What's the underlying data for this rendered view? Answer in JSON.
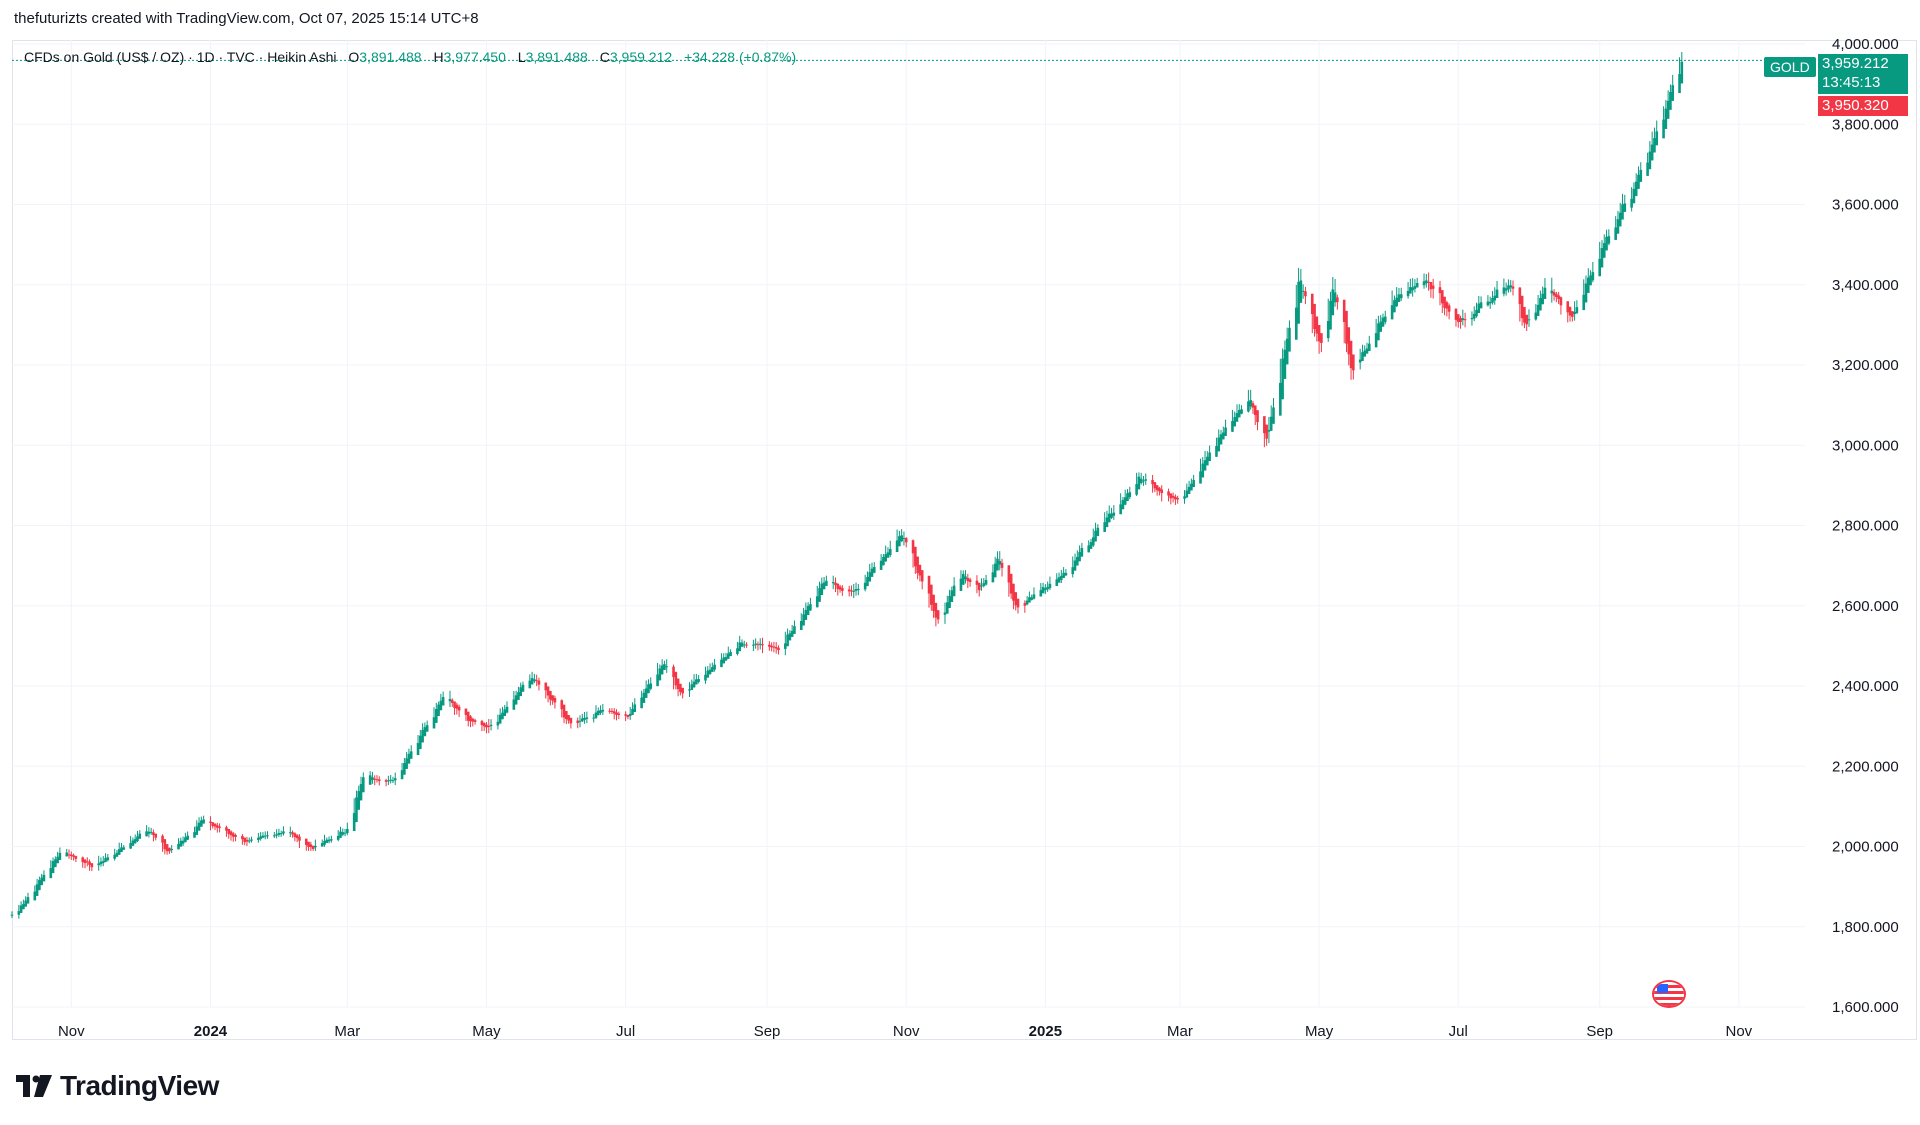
{
  "caption": "thefuturizts created with TradingView.com, Oct 07, 2025 15:14 UTC+8",
  "legend": {
    "symbol": "CFDs on Gold (US$ / OZ) · 1D · TVC · Heikin Ashi",
    "o_label": "O",
    "o_value": "3,891.488",
    "h_label": "H",
    "h_value": "3,977.450",
    "l_label": "L",
    "l_value": "3,891.488",
    "c_label": "C",
    "c_value": "3,959.212",
    "change": "+34.228 (+0.87%)"
  },
  "price_tags": {
    "ticker": "GOLD",
    "last_price": "3,959.212",
    "countdown": "13:45:13",
    "other_price": "3,950.320"
  },
  "logo_text": "TradingView",
  "colors": {
    "up": "#089981",
    "down": "#f23645",
    "grid": "#f0f3fa",
    "axis_text": "#131722"
  },
  "icons": {
    "flag": "us-flag-icon",
    "logo": "tradingview-logo-icon"
  },
  "chart_data": {
    "type": "candlestick",
    "style": "Heikin Ashi",
    "interval": "1D",
    "title": "CFDs on Gold (US$ / OZ)",
    "ylim": [
      1600,
      4000
    ],
    "y_ticks": [
      "1,600.000",
      "1,800.000",
      "2,000.000",
      "2,200.000",
      "2,400.000",
      "2,600.000",
      "2,800.000",
      "3,000.000",
      "3,200.000",
      "3,400.000",
      "3,600.000",
      "3,800.000",
      "4,000.000"
    ],
    "x_ticks": [
      {
        "label": "Nov",
        "date": "2023-11-01",
        "bold": false
      },
      {
        "label": "2024",
        "date": "2024-01-01",
        "bold": true
      },
      {
        "label": "Mar",
        "date": "2024-03-01",
        "bold": false
      },
      {
        "label": "May",
        "date": "2024-05-01",
        "bold": false
      },
      {
        "label": "Jul",
        "date": "2024-07-01",
        "bold": false
      },
      {
        "label": "Sep",
        "date": "2024-09-01",
        "bold": false
      },
      {
        "label": "Nov",
        "date": "2024-11-01",
        "bold": false
      },
      {
        "label": "2025",
        "date": "2025-01-01",
        "bold": true
      },
      {
        "label": "Mar",
        "date": "2025-03-01",
        "bold": false
      },
      {
        "label": "May",
        "date": "2025-05-01",
        "bold": false
      },
      {
        "label": "Jul",
        "date": "2025-07-01",
        "bold": false
      },
      {
        "label": "Sep",
        "date": "2025-09-01",
        "bold": false
      },
      {
        "label": "Nov",
        "date": "2025-11-01",
        "bold": false
      }
    ],
    "x_range": [
      "2023-10-06",
      "2025-11-30"
    ],
    "last_close": 3959.212,
    "secondary_price": 3950.32,
    "anchors": [
      [
        "2023-10-06",
        1830
      ],
      [
        "2023-10-12",
        1870
      ],
      [
        "2023-10-27",
        1990
      ],
      [
        "2023-11-10",
        1950
      ],
      [
        "2023-11-20",
        1985
      ],
      [
        "2023-12-04",
        2045
      ],
      [
        "2023-12-13",
        1985
      ],
      [
        "2023-12-28",
        2065
      ],
      [
        "2024-01-17",
        2010
      ],
      [
        "2024-02-02",
        2040
      ],
      [
        "2024-02-14",
        1995
      ],
      [
        "2024-02-29",
        2040
      ],
      [
        "2024-03-08",
        2180
      ],
      [
        "2024-03-20",
        2160
      ],
      [
        "2024-04-12",
        2380
      ],
      [
        "2024-04-23",
        2310
      ],
      [
        "2024-05-02",
        2300
      ],
      [
        "2024-05-20",
        2425
      ],
      [
        "2024-06-07",
        2300
      ],
      [
        "2024-06-20",
        2340
      ],
      [
        "2024-07-01",
        2320
      ],
      [
        "2024-07-17",
        2460
      ],
      [
        "2024-07-25",
        2380
      ],
      [
        "2024-08-20",
        2510
      ],
      [
        "2024-09-06",
        2495
      ],
      [
        "2024-09-26",
        2660
      ],
      [
        "2024-10-08",
        2630
      ],
      [
        "2024-10-30",
        2780
      ],
      [
        "2024-11-14",
        2565
      ],
      [
        "2024-11-25",
        2680
      ],
      [
        "2024-12-02",
        2640
      ],
      [
        "2024-12-11",
        2715
      ],
      [
        "2024-12-19",
        2595
      ],
      [
        "2025-01-10",
        2690
      ],
      [
        "2025-02-11",
        2920
      ],
      [
        "2025-02-28",
        2860
      ],
      [
        "2025-03-14",
        2990
      ],
      [
        "2025-03-31",
        3120
      ],
      [
        "2025-04-07",
        3000
      ],
      [
        "2025-04-22",
        3420
      ],
      [
        "2025-05-01",
        3250
      ],
      [
        "2025-05-07",
        3400
      ],
      [
        "2025-05-15",
        3180
      ],
      [
        "2025-06-02",
        3360
      ],
      [
        "2025-06-16",
        3420
      ],
      [
        "2025-06-30",
        3300
      ],
      [
        "2025-07-23",
        3410
      ],
      [
        "2025-07-30",
        3300
      ],
      [
        "2025-08-08",
        3390
      ],
      [
        "2025-08-20",
        3320
      ],
      [
        "2025-09-02",
        3500
      ],
      [
        "2025-09-17",
        3660
      ],
      [
        "2025-09-23",
        3740
      ],
      [
        "2025-10-07",
        3959
      ]
    ]
  }
}
